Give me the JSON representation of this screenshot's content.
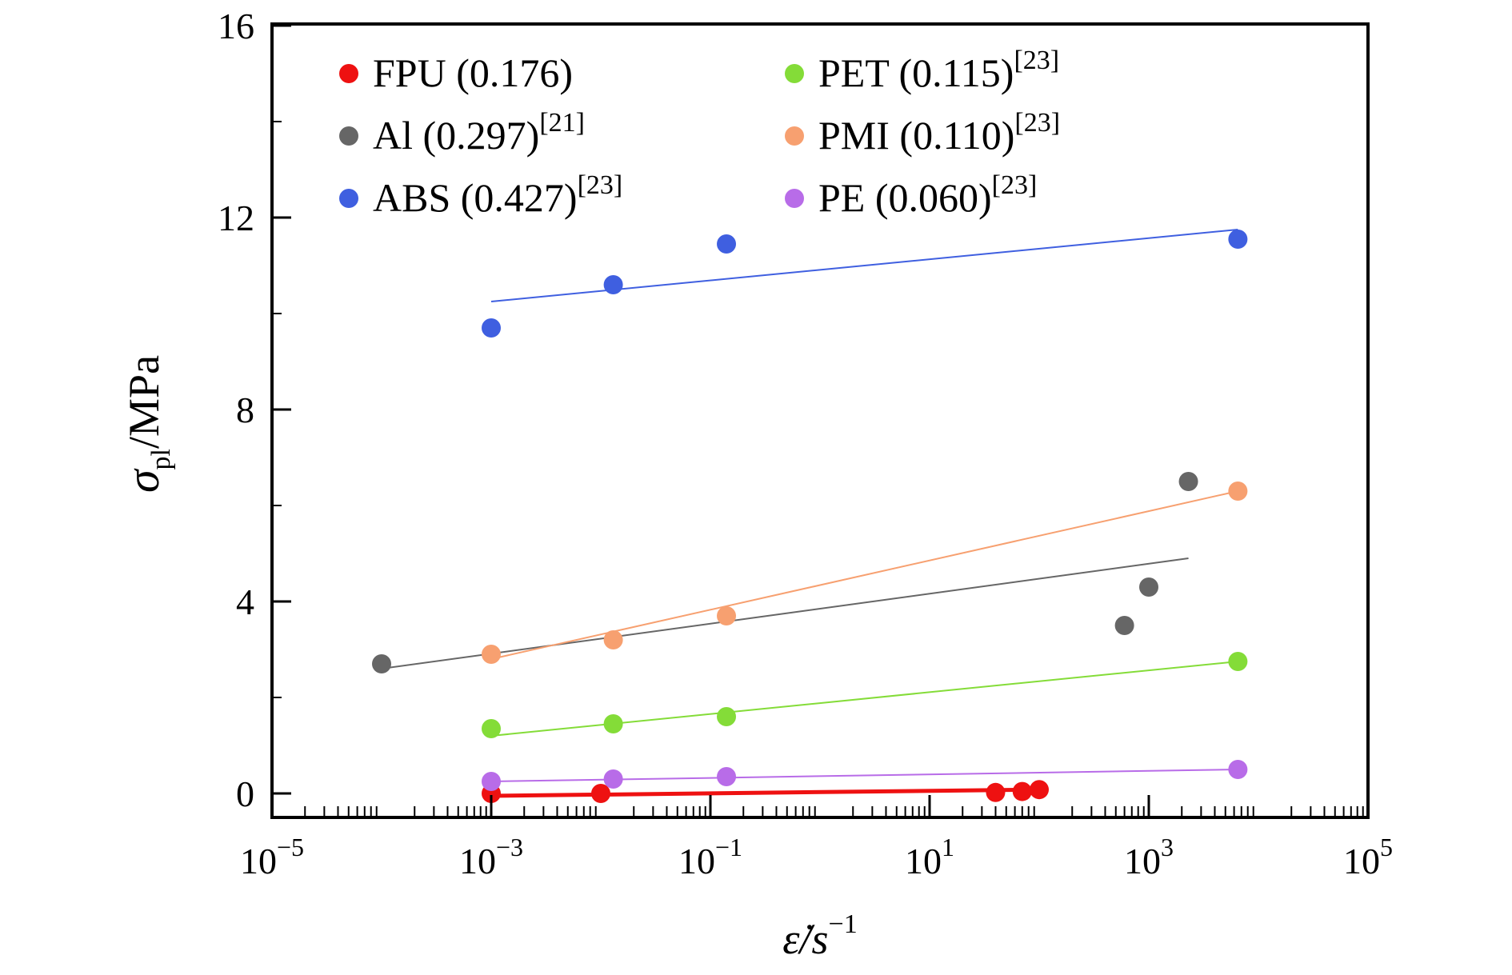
{
  "chart_data": {
    "type": "scatter",
    "x_scale": "log",
    "x_range": [
      1e-05,
      100000.0
    ],
    "y_range": [
      0,
      16
    ],
    "grid": false,
    "legend_position": "top-left",
    "xlabel": {
      "main": "ε̇/s",
      "sup": "−1"
    },
    "ylabel": {
      "main": "σ",
      "sub": "pl",
      "rest": "/MPa"
    },
    "x_ticks": [
      {
        "base": "10",
        "exp": "−5",
        "value": 1e-05
      },
      {
        "base": "10",
        "exp": "−3",
        "value": 0.001
      },
      {
        "base": "10",
        "exp": "−1",
        "value": 0.1
      },
      {
        "base": "10",
        "exp": "1",
        "value": 10
      },
      {
        "base": "10",
        "exp": "3",
        "value": 1000
      },
      {
        "base": "10",
        "exp": "5",
        "value": 100000
      }
    ],
    "y_ticks": [
      {
        "label": "0",
        "value": 0
      },
      {
        "label": "4",
        "value": 4
      },
      {
        "label": "8",
        "value": 8
      },
      {
        "label": "12",
        "value": 12
      },
      {
        "label": "16",
        "value": 16
      }
    ],
    "series": [
      {
        "name": "FPU (0.176)",
        "ref": "",
        "color": "#ee1111",
        "points": [
          [
            0.001,
            0.0
          ],
          [
            0.01,
            0.0
          ],
          [
            40,
            0.02
          ],
          [
            70,
            0.04
          ],
          [
            100,
            0.08
          ]
        ],
        "fit": [
          [
            0.001,
            -0.05
          ],
          [
            100,
            0.08
          ]
        ],
        "fit_width": 5
      },
      {
        "name": "Al (0.297)",
        "ref": "[21]",
        "color": "#666666",
        "points": [
          [
            0.0001,
            2.7
          ],
          [
            600,
            3.5
          ],
          [
            1000,
            4.3
          ],
          [
            2300,
            6.5
          ]
        ],
        "fit": [
          [
            0.0001,
            2.6
          ],
          [
            2300,
            4.9
          ]
        ],
        "fit_width": 2
      },
      {
        "name": "ABS (0.427)",
        "ref": "[23]",
        "color": "#3f5fe0",
        "points": [
          [
            0.001,
            9.7
          ],
          [
            0.013,
            10.6
          ],
          [
            0.14,
            11.45
          ],
          [
            6500,
            11.55
          ]
        ],
        "fit": [
          [
            0.001,
            10.25
          ],
          [
            6500,
            11.75
          ]
        ],
        "fit_width": 2
      },
      {
        "name": "PET (0.115)",
        "ref": "[23]",
        "color": "#84dc38",
        "points": [
          [
            0.001,
            1.35
          ],
          [
            0.013,
            1.45
          ],
          [
            0.14,
            1.6
          ],
          [
            6500,
            2.75
          ]
        ],
        "fit": [
          [
            0.001,
            1.2
          ],
          [
            6500,
            2.75
          ]
        ],
        "fit_width": 2
      },
      {
        "name": "PMI (0.110)",
        "ref": "[23]",
        "color": "#f7a070",
        "points": [
          [
            0.001,
            2.9
          ],
          [
            0.013,
            3.2
          ],
          [
            0.14,
            3.7
          ],
          [
            6500,
            6.3
          ]
        ],
        "fit": [
          [
            0.001,
            2.8
          ],
          [
            6500,
            6.3
          ]
        ],
        "fit_width": 2
      },
      {
        "name": "PE (0.060)",
        "ref": "[23]",
        "color": "#b86ce8",
        "points": [
          [
            0.001,
            0.25
          ],
          [
            0.013,
            0.3
          ],
          [
            0.14,
            0.35
          ],
          [
            6500,
            0.5
          ]
        ],
        "fit": [
          [
            0.001,
            0.25
          ],
          [
            6500,
            0.5
          ]
        ],
        "fit_width": 2
      }
    ]
  }
}
